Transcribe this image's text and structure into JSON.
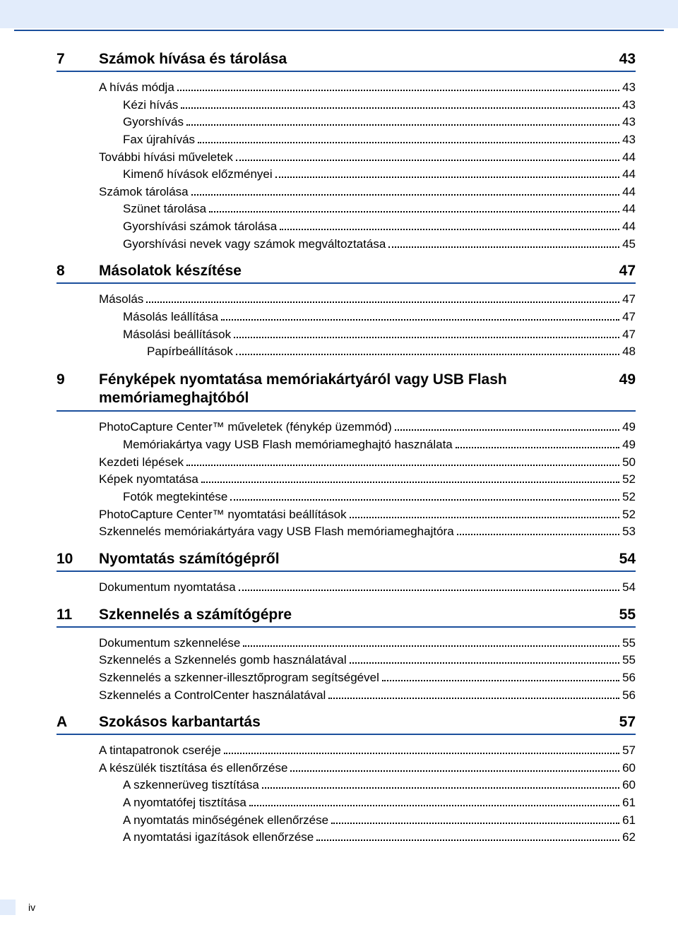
{
  "colors": {
    "band_bg": "#e2ecfb",
    "rule": "#1b4f9c",
    "text": "#000000",
    "page_bg": "#ffffff"
  },
  "footer": {
    "page_number": "iv"
  },
  "sections": [
    {
      "num": "7",
      "title": "Számok hívása és tárolása",
      "page": "43",
      "entries": [
        {
          "label": "A hívás módja",
          "page": "43",
          "indent": 0
        },
        {
          "label": "Kézi hívás",
          "page": "43",
          "indent": 1
        },
        {
          "label": "Gyorshívás",
          "page": "43",
          "indent": 1
        },
        {
          "label": "Fax újrahívás",
          "page": "43",
          "indent": 1
        },
        {
          "label": "További hívási műveletek",
          "page": "44",
          "indent": 0
        },
        {
          "label": "Kimenő hívások előzményei",
          "page": "44",
          "indent": 1
        },
        {
          "label": "Számok tárolása",
          "page": "44",
          "indent": 0
        },
        {
          "label": "Szünet tárolása",
          "page": "44",
          "indent": 1
        },
        {
          "label": "Gyorshívási számok tárolása",
          "page": "44",
          "indent": 1
        },
        {
          "label": "Gyorshívási nevek vagy számok megváltoztatása",
          "page": "45",
          "indent": 1
        }
      ]
    },
    {
      "num": "8",
      "title": "Másolatok készítése",
      "page": "47",
      "entries": [
        {
          "label": "Másolás",
          "page": "47",
          "indent": 0
        },
        {
          "label": "Másolás leállítása",
          "page": "47",
          "indent": 1
        },
        {
          "label": "Másolási beállítások",
          "page": "47",
          "indent": 1
        },
        {
          "label": "Papírbeállítások",
          "page": "48",
          "indent": 2
        }
      ]
    },
    {
      "num": "9",
      "title": "Fényképek nyomtatása memóriakártyáról vagy USB Flash memóriameghajtóból",
      "page": "49",
      "entries": [
        {
          "label": "PhotoCapture Center™ műveletek (fénykép üzemmód)",
          "page": "49",
          "indent": 0
        },
        {
          "label": "Memóriakártya vagy USB Flash memóriameghajtó használata",
          "page": "49",
          "indent": 1
        },
        {
          "label": "Kezdeti lépések",
          "page": "50",
          "indent": 0
        },
        {
          "label": "Képek nyomtatása",
          "page": "52",
          "indent": 0
        },
        {
          "label": "Fotók megtekintése",
          "page": "52",
          "indent": 1
        },
        {
          "label": "PhotoCapture Center™ nyomtatási beállítások",
          "page": "52",
          "indent": 0
        },
        {
          "label": "Szkennelés memóriakártyára vagy USB Flash memóriameghajtóra",
          "page": "53",
          "indent": 0
        }
      ]
    },
    {
      "num": "10",
      "title": "Nyomtatás számítógépről",
      "page": "54",
      "entries": [
        {
          "label": "Dokumentum nyomtatása",
          "page": "54",
          "indent": 0
        }
      ]
    },
    {
      "num": "11",
      "title": "Szkennelés a számítógépre",
      "page": "55",
      "entries": [
        {
          "label": "Dokumentum szkennelése",
          "page": "55",
          "indent": 0
        },
        {
          "label": "Szkennelés a Szkennelés gomb használatával",
          "page": "55",
          "indent": 0
        },
        {
          "label": "Szkennelés a szkenner-illesztőprogram segítségével",
          "page": "56",
          "indent": 0
        },
        {
          "label": "Szkennelés a ControlCenter használatával",
          "page": "56",
          "indent": 0
        }
      ]
    },
    {
      "num": "A",
      "title": "Szokásos karbantartás",
      "page": "57",
      "entries": [
        {
          "label": "A tintapatronok cseréje",
          "page": "57",
          "indent": 0
        },
        {
          "label": "A készülék tisztítása és ellenőrzése",
          "page": "60",
          "indent": 0
        },
        {
          "label": "A szkennerüveg tisztítása",
          "page": "60",
          "indent": 1
        },
        {
          "label": "A nyomtatófej tisztítása",
          "page": "61",
          "indent": 1
        },
        {
          "label": "A nyomtatás minőségének ellenőrzése",
          "page": "61",
          "indent": 1
        },
        {
          "label": "A nyomtatási igazítások ellenőrzése",
          "page": "62",
          "indent": 1
        }
      ]
    }
  ]
}
